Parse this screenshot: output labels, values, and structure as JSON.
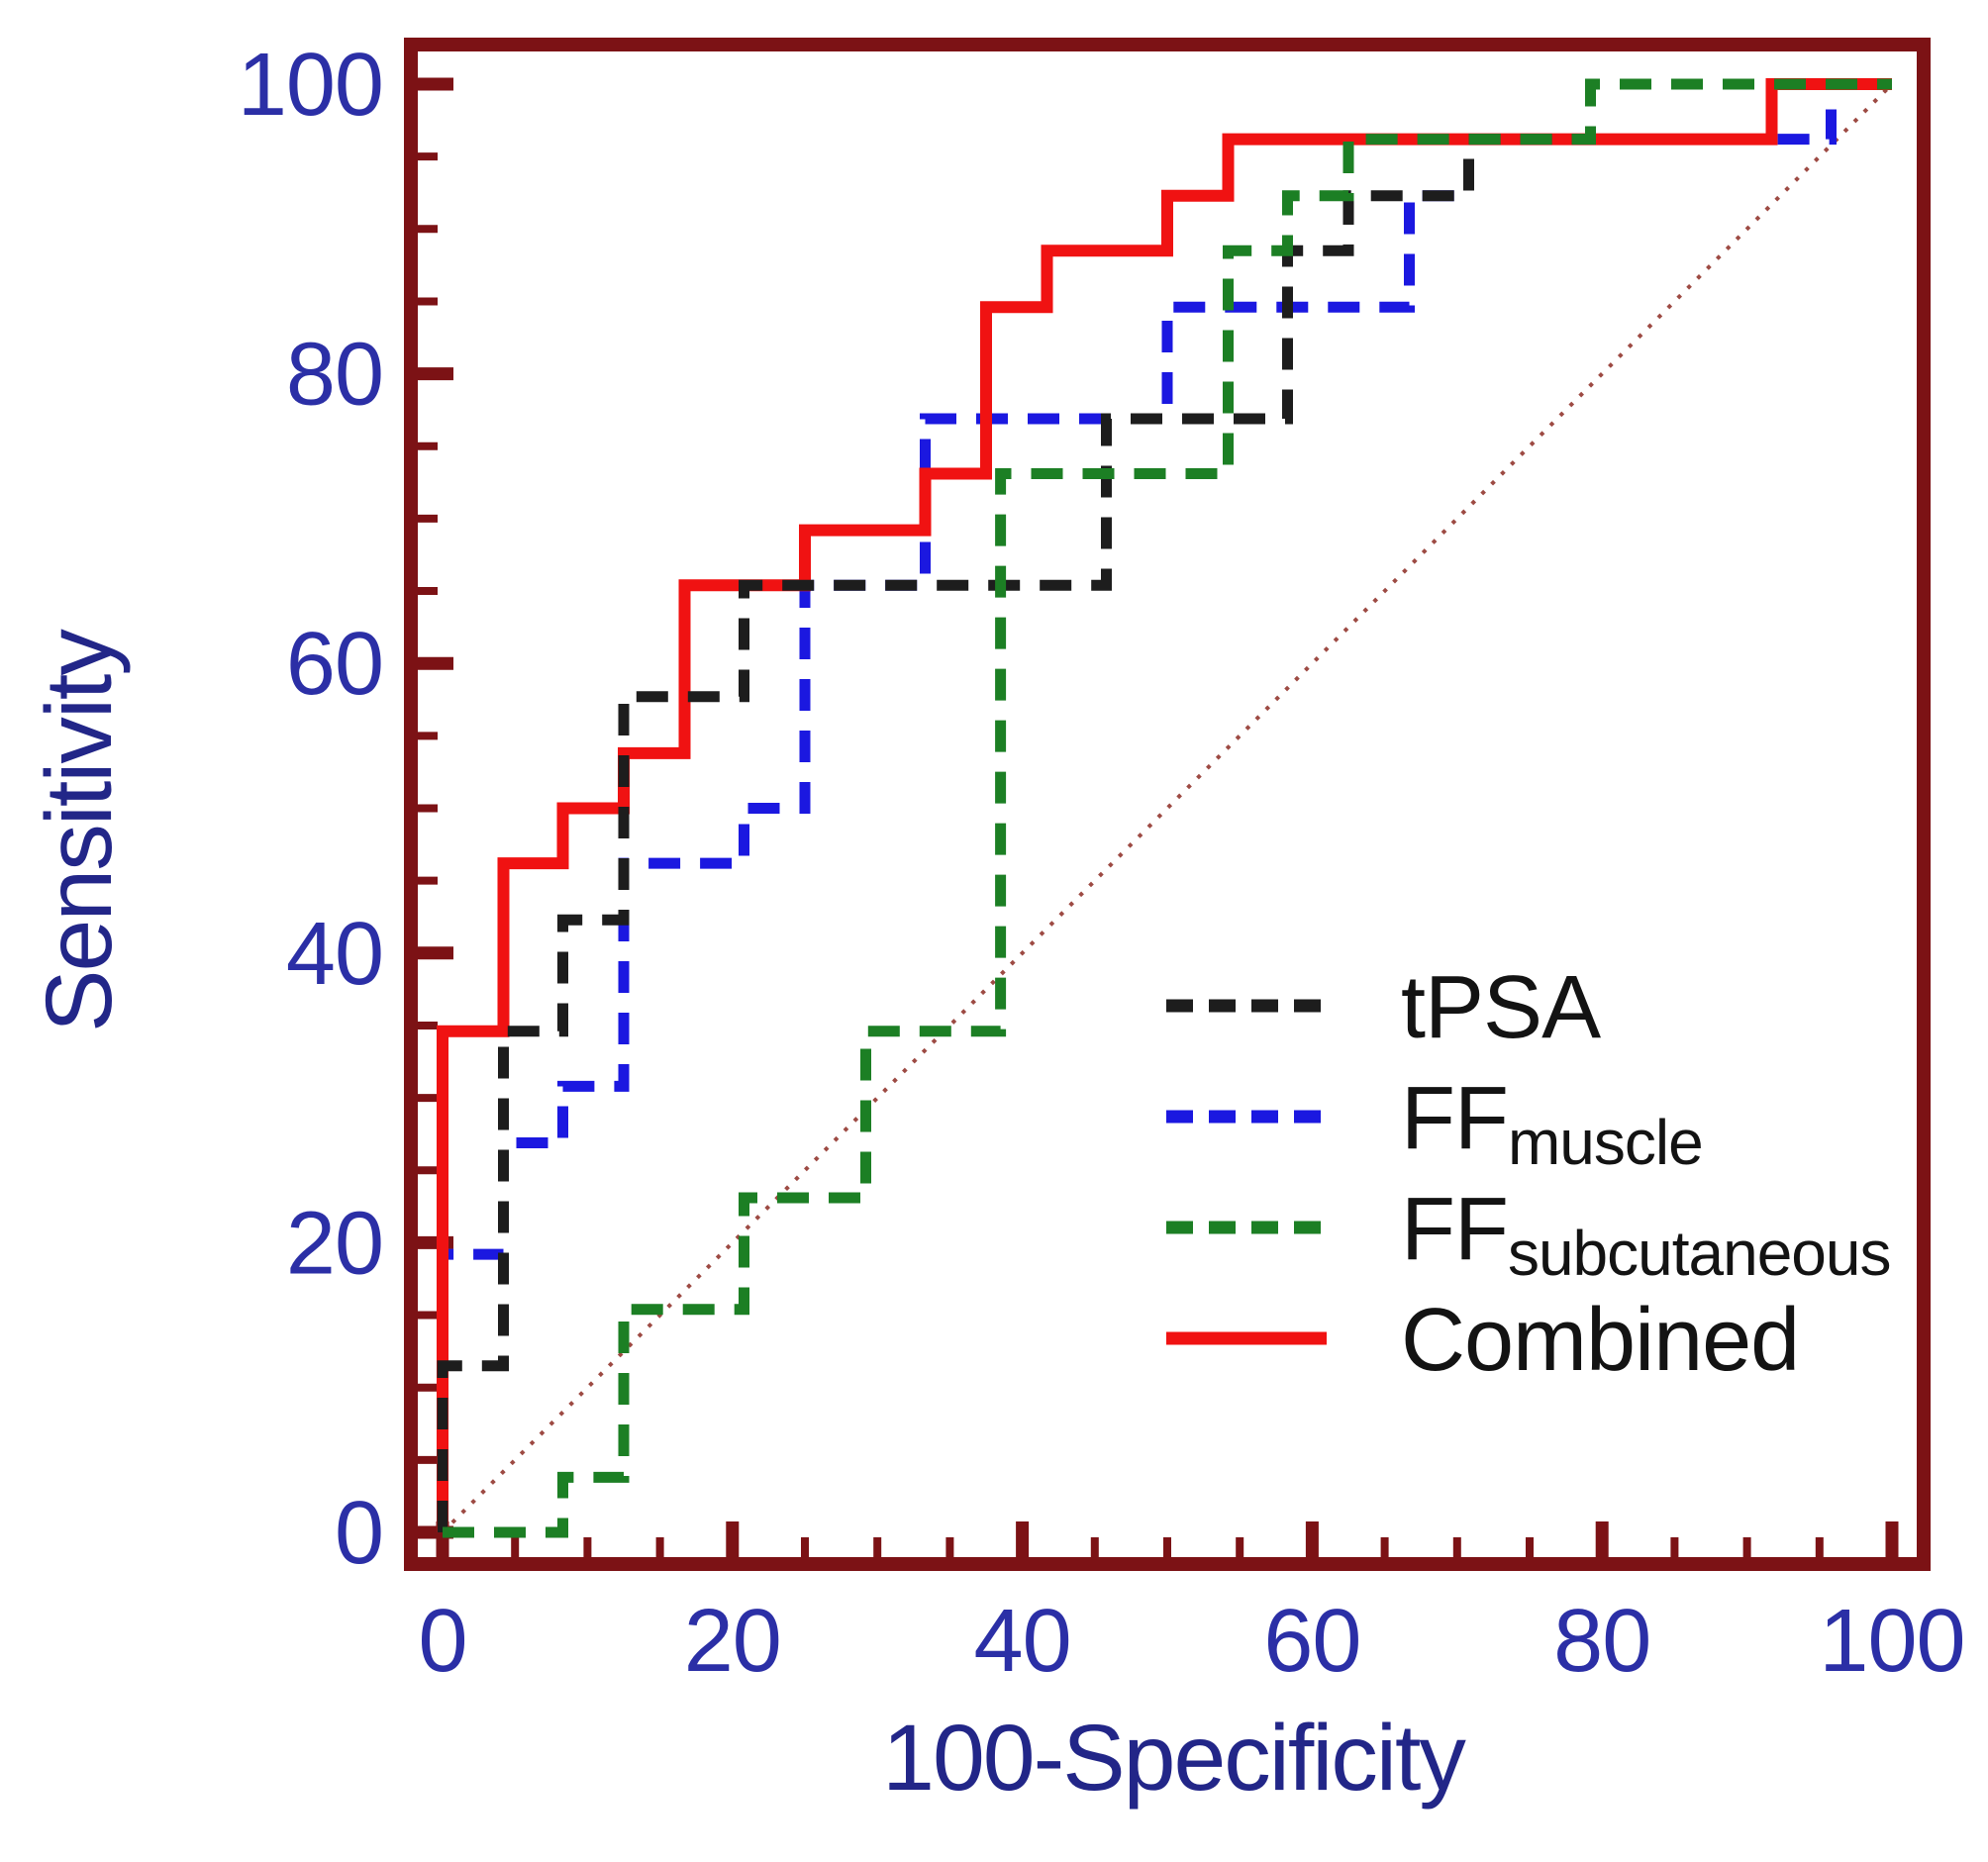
{
  "figure": {
    "background": "#ffffff"
  },
  "chart_data": {
    "type": "line",
    "subtype": "roc-step-curves",
    "title": "",
    "xlabel": "100-Specificity",
    "ylabel": "Sensitivity",
    "xlim": [
      0,
      100
    ],
    "ylim": [
      0,
      100
    ],
    "x_major_ticks": [
      0,
      20,
      40,
      60,
      80,
      100
    ],
    "y_major_ticks": [
      0,
      20,
      40,
      60,
      80,
      100
    ],
    "minor_tick_step": 5,
    "grid": false,
    "legend_position": "inside-lower-right",
    "frame_color": "#7c1215",
    "tick_label_color": "#2b2fa6",
    "axis_title_color": "#222688",
    "legend_text_color": "#131313",
    "reference_line": {
      "label": "chance-diagonal",
      "x": [
        0,
        100
      ],
      "y": [
        0,
        100
      ],
      "color": "#9d4a43",
      "style": "dotted"
    },
    "draw_order": [
      "FFmuscle",
      "Combined",
      "tPSA",
      "FFsubcutaneous"
    ],
    "series": [
      {
        "label": "tPSA",
        "label_main": "tPSA",
        "label_sub": "",
        "color": "#1d1d1d",
        "line_style": "dashed",
        "points": [
          [
            0,
            0
          ],
          [
            0,
            11.5
          ],
          [
            4.2,
            11.5
          ],
          [
            4.2,
            34.6
          ],
          [
            8.3,
            34.6
          ],
          [
            8.3,
            42.3
          ],
          [
            12.5,
            42.3
          ],
          [
            12.5,
            57.7
          ],
          [
            20.8,
            57.7
          ],
          [
            20.8,
            65.4
          ],
          [
            45.8,
            65.4
          ],
          [
            45.8,
            76.9
          ],
          [
            58.3,
            76.9
          ],
          [
            58.3,
            88.5
          ],
          [
            62.5,
            88.5
          ],
          [
            62.5,
            92.3
          ],
          [
            70.8,
            92.3
          ],
          [
            70.8,
            96.2
          ],
          [
            79.2,
            96.2
          ],
          [
            79.2,
            100
          ],
          [
            100,
            100
          ]
        ]
      },
      {
        "label": "FFmuscle",
        "label_main": "FF",
        "label_sub": "muscle",
        "color": "#1b18e0",
        "line_style": "dashed",
        "points": [
          [
            0,
            0
          ],
          [
            0,
            19.2
          ],
          [
            4.2,
            19.2
          ],
          [
            4.2,
            26.9
          ],
          [
            8.3,
            26.9
          ],
          [
            8.3,
            30.8
          ],
          [
            12.5,
            30.8
          ],
          [
            12.5,
            46.2
          ],
          [
            20.8,
            46.2
          ],
          [
            20.8,
            50
          ],
          [
            25,
            50
          ],
          [
            25,
            65.4
          ],
          [
            33.3,
            65.4
          ],
          [
            33.3,
            76.9
          ],
          [
            50,
            76.9
          ],
          [
            50,
            84.6
          ],
          [
            66.7,
            84.6
          ],
          [
            66.7,
            92.3
          ],
          [
            70.8,
            92.3
          ],
          [
            70.8,
            96.2
          ],
          [
            95.8,
            96.2
          ],
          [
            95.8,
            100
          ],
          [
            100,
            100
          ]
        ]
      },
      {
        "label": "FFsubcutaneous",
        "label_main": "FF",
        "label_sub": "subcutaneous",
        "color": "#1c7f24",
        "line_style": "dashed",
        "points": [
          [
            0,
            0
          ],
          [
            8.3,
            0
          ],
          [
            8.3,
            3.8
          ],
          [
            12.5,
            3.8
          ],
          [
            12.5,
            15.4
          ],
          [
            20.8,
            15.4
          ],
          [
            20.8,
            23.1
          ],
          [
            29.2,
            23.1
          ],
          [
            29.2,
            34.6
          ],
          [
            38.5,
            34.6
          ],
          [
            38.5,
            73.1
          ],
          [
            54.2,
            73.1
          ],
          [
            54.2,
            88.5
          ],
          [
            58.3,
            88.5
          ],
          [
            58.3,
            92.3
          ],
          [
            62.5,
            92.3
          ],
          [
            62.5,
            96.2
          ],
          [
            79.2,
            96.2
          ],
          [
            79.2,
            100
          ],
          [
            100,
            100
          ]
        ]
      },
      {
        "label": "Combined",
        "label_main": "Combined",
        "label_sub": "",
        "color": "#f01212",
        "line_style": "solid",
        "points": [
          [
            0,
            0
          ],
          [
            0,
            34.6
          ],
          [
            4.2,
            34.6
          ],
          [
            4.2,
            46.2
          ],
          [
            8.3,
            46.2
          ],
          [
            8.3,
            50
          ],
          [
            12.5,
            50
          ],
          [
            12.5,
            53.8
          ],
          [
            16.7,
            53.8
          ],
          [
            16.7,
            65.4
          ],
          [
            25,
            65.4
          ],
          [
            25,
            69.2
          ],
          [
            33.3,
            69.2
          ],
          [
            33.3,
            73.1
          ],
          [
            37.5,
            73.1
          ],
          [
            37.5,
            84.6
          ],
          [
            41.7,
            84.6
          ],
          [
            41.7,
            88.5
          ],
          [
            50,
            88.5
          ],
          [
            50,
            92.3
          ],
          [
            54.2,
            92.3
          ],
          [
            54.2,
            96.2
          ],
          [
            91.7,
            96.2
          ],
          [
            91.7,
            100
          ],
          [
            100,
            100
          ]
        ]
      }
    ]
  }
}
